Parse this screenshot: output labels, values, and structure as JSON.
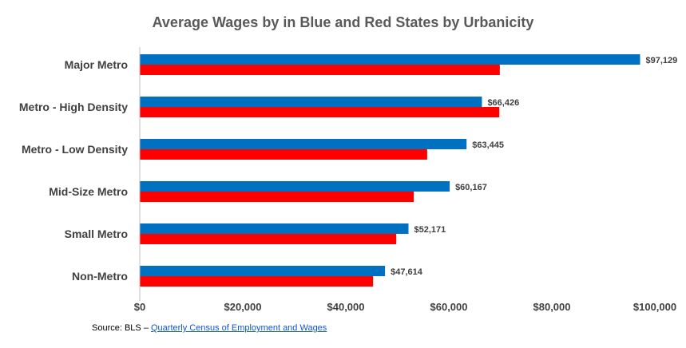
{
  "chart_data": {
    "type": "bar",
    "orientation": "horizontal",
    "title": "Average Wages by in Blue and Red States by Urbanicity",
    "categories": [
      "Major Metro",
      "Metro - High Density",
      "Metro - Low Density",
      "Mid-Size Metro",
      "Small Metro",
      "Non-Metro"
    ],
    "series": [
      {
        "color": "#0070C0",
        "values": [
          97129,
          66426,
          63445,
          60167,
          52171,
          47614
        ],
        "labeled": true
      },
      {
        "color": "#FF0000",
        "values": [
          69900,
          69800,
          55800,
          53200,
          49800,
          45300
        ],
        "labeled": false
      }
    ],
    "data_labels": [
      "$97,129",
      "$66,426",
      "$63,445",
      "$60,167",
      "$52,171",
      "$47,614"
    ],
    "xlim": [
      0,
      100000
    ],
    "xticks": [
      0,
      20000,
      40000,
      60000,
      80000,
      100000
    ],
    "xtick_labels": [
      "$0",
      "$20,000",
      "$40,000",
      "$60,000",
      "$80,000",
      "$100,000"
    ],
    "grid": false,
    "legend": "none"
  },
  "source": {
    "prefix": "Source: BLS – ",
    "link_text": "Quarterly Census of Employment and Wages"
  }
}
